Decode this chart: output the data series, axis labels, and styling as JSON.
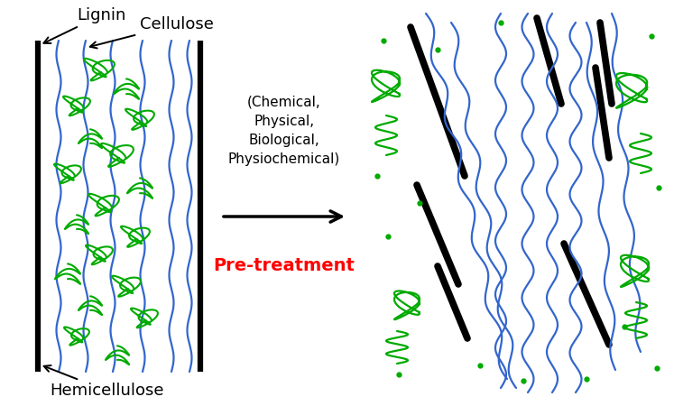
{
  "background_color": "#ffffff",
  "lignin_color": "#000000",
  "cellulose_color": "#3366CC",
  "hemicellulose_color": "#00AA00",
  "arrow_color": "#000000",
  "pretreatment_color": "#FF0000",
  "label_fontsize": 12,
  "pretreatment_fontsize": 13,
  "method_fontsize": 11,
  "labels": {
    "lignin": "Lignin",
    "cellulose": "Cellulose",
    "hemicellulose": "Hemicellulose",
    "methods": "(Chemical,\nPhysical,\nBiological,\nPhysiochemical)",
    "pretreatment": "Pre-treatment"
  }
}
